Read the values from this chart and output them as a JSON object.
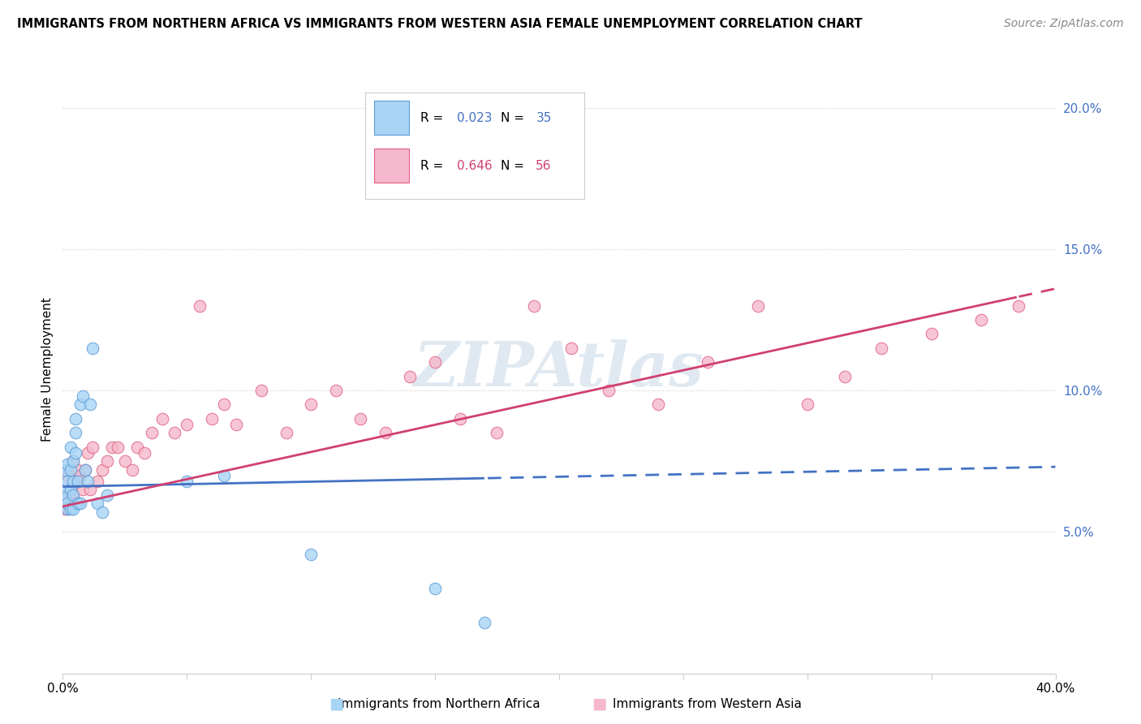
{
  "title": "IMMIGRANTS FROM NORTHERN AFRICA VS IMMIGRANTS FROM WESTERN ASIA FEMALE UNEMPLOYMENT CORRELATION CHART",
  "source": "Source: ZipAtlas.com",
  "ylabel": "Female Unemployment",
  "xlim": [
    0.0,
    0.4
  ],
  "ylim": [
    0.0,
    0.215
  ],
  "yticks": [
    0.05,
    0.1,
    0.15,
    0.2
  ],
  "ytick_labels": [
    "5.0%",
    "10.0%",
    "15.0%",
    "20.0%"
  ],
  "xticks": [
    0.0,
    0.05,
    0.1,
    0.15,
    0.2,
    0.25,
    0.3,
    0.35,
    0.4
  ],
  "legend_r1_label": "R = ",
  "legend_r1_val": "0.023",
  "legend_n1_label": "N = ",
  "legend_n1_val": "35",
  "legend_r2_label": "R = ",
  "legend_r2_val": "0.646",
  "legend_n2_label": "N = ",
  "legend_n2_val": "56",
  "series1_label": "Immigrants from Northern Africa",
  "series2_label": "Immigrants from Western Asia",
  "color1_fill": "#A8D4F5",
  "color1_edge": "#5B9BD5",
  "color2_fill": "#F5B8CC",
  "color2_edge": "#E06080",
  "line1_color": "#4472C4",
  "line2_color": "#D04070",
  "watermark": "ZIPAtlas",
  "north_africa_x": [
    0.001,
    0.001,
    0.001,
    0.002,
    0.002,
    0.002,
    0.002,
    0.003,
    0.003,
    0.003,
    0.003,
    0.004,
    0.004,
    0.004,
    0.004,
    0.005,
    0.005,
    0.005,
    0.006,
    0.006,
    0.007,
    0.007,
    0.008,
    0.009,
    0.01,
    0.011,
    0.012,
    0.014,
    0.016,
    0.018,
    0.05,
    0.065,
    0.1,
    0.15,
    0.17
  ],
  "north_africa_y": [
    0.065,
    0.072,
    0.062,
    0.068,
    0.058,
    0.074,
    0.06,
    0.08,
    0.065,
    0.072,
    0.058,
    0.075,
    0.063,
    0.058,
    0.068,
    0.09,
    0.085,
    0.078,
    0.068,
    0.06,
    0.095,
    0.06,
    0.098,
    0.072,
    0.068,
    0.095,
    0.115,
    0.06,
    0.057,
    0.063,
    0.068,
    0.07,
    0.042,
    0.03,
    0.018
  ],
  "western_asia_x": [
    0.001,
    0.001,
    0.002,
    0.002,
    0.003,
    0.003,
    0.004,
    0.004,
    0.005,
    0.005,
    0.006,
    0.007,
    0.008,
    0.009,
    0.01,
    0.011,
    0.012,
    0.014,
    0.016,
    0.018,
    0.02,
    0.022,
    0.025,
    0.028,
    0.03,
    0.033,
    0.036,
    0.04,
    0.045,
    0.05,
    0.055,
    0.06,
    0.065,
    0.07,
    0.08,
    0.09,
    0.1,
    0.11,
    0.12,
    0.13,
    0.14,
    0.15,
    0.16,
    0.175,
    0.19,
    0.205,
    0.22,
    0.24,
    0.26,
    0.28,
    0.3,
    0.315,
    0.33,
    0.35,
    0.37,
    0.385
  ],
  "western_asia_y": [
    0.063,
    0.058,
    0.07,
    0.058,
    0.065,
    0.06,
    0.075,
    0.062,
    0.068,
    0.06,
    0.072,
    0.07,
    0.065,
    0.072,
    0.078,
    0.065,
    0.08,
    0.068,
    0.072,
    0.075,
    0.08,
    0.08,
    0.075,
    0.072,
    0.08,
    0.078,
    0.085,
    0.09,
    0.085,
    0.088,
    0.13,
    0.09,
    0.095,
    0.088,
    0.1,
    0.085,
    0.095,
    0.1,
    0.09,
    0.085,
    0.105,
    0.11,
    0.09,
    0.085,
    0.13,
    0.115,
    0.1,
    0.095,
    0.11,
    0.13,
    0.095,
    0.105,
    0.115,
    0.12,
    0.125,
    0.13
  ],
  "line1_x0": 0.0,
  "line1_y0": 0.066,
  "line1_x1": 0.4,
  "line1_y1": 0.073,
  "line1_solid_end": 0.17,
  "line2_x0": 0.0,
  "line2_y0": 0.059,
  "line2_x1": 0.4,
  "line2_y1": 0.136,
  "line2_solid_end": 0.385
}
